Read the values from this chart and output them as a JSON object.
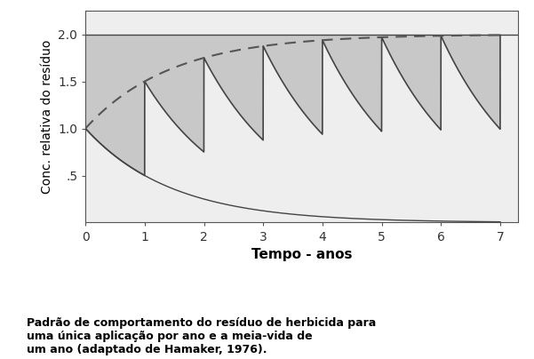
{
  "title": "",
  "xlabel": "Tempo - anos",
  "ylabel": "Conc. relativa do resíduo",
  "caption": "Padrão de comportamento do resíduo de herbicida para\numa única aplicação por ano e a meia-vida de\num ano (adaptado de Hamaker, 1976).",
  "xlim": [
    0,
    7.3
  ],
  "ylim": [
    0,
    2.25
  ],
  "yticks": [
    0.5,
    1.0,
    1.5,
    2.0
  ],
  "ytick_labels": [
    ".5",
    "1.0",
    "1.5",
    "2.0"
  ],
  "xticks": [
    0,
    1,
    2,
    3,
    4,
    5,
    6,
    7
  ],
  "half_life": 1.0,
  "n_years": 7,
  "asymptote": 2.0,
  "fill_color": "#c8c8c8",
  "fill_alpha": 1.0,
  "line_color": "#444444",
  "dashed_color": "#555555",
  "single_decay_color": "#444444",
  "asymptote_color": "#444444",
  "background_color": "#eeeeee",
  "fig_background": "#ffffff"
}
